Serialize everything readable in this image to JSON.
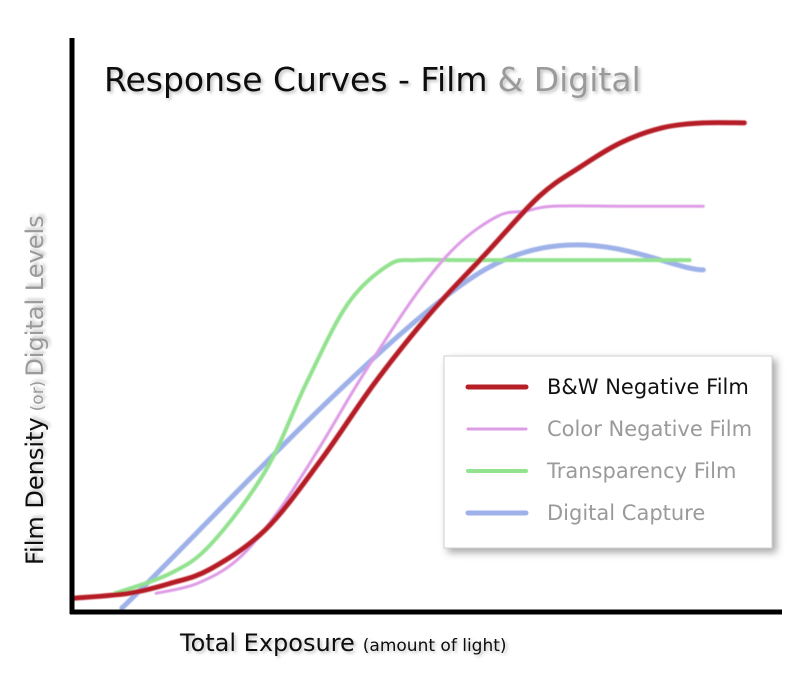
{
  "chart_data": {
    "type": "line",
    "title": {
      "main": "Response Curves - Film",
      "accent": "& Digital"
    },
    "xlabel": {
      "main": "Total Exposure",
      "sub": "(amount of light)"
    },
    "ylabel": {
      "main": "Film Density",
      "sub": "(or)",
      "accent": "Digital  Levels"
    },
    "xlim": [
      0,
      100
    ],
    "ylim": [
      0,
      100
    ],
    "grid": false,
    "legend_position": "right",
    "series": [
      {
        "name": "B&W Negative Film",
        "color": "#b51f25",
        "text_color": "#111111",
        "x": [
          0,
          8,
          14,
          20,
          28,
          36,
          44,
          52,
          60,
          68,
          74,
          80,
          86,
          92,
          98
        ],
        "y": [
          2,
          3,
          5,
          8,
          16,
          30,
          46,
          60,
          72,
          84,
          90,
          95,
          98,
          99,
          99
        ]
      },
      {
        "name": "Color Negative Film",
        "color": "#de9be6",
        "text_color": "#9a9a9a",
        "x": [
          12,
          18,
          24,
          30,
          36,
          42,
          50,
          56,
          62,
          66,
          70,
          80,
          90,
          92
        ],
        "y": [
          3,
          5,
          10,
          20,
          33,
          47,
          64,
          74,
          80,
          81,
          82,
          82,
          82,
          82
        ]
      },
      {
        "name": "Transparency Film",
        "color": "#92e28f",
        "text_color": "#9a9a9a",
        "x": [
          6,
          14,
          20,
          28,
          34,
          40,
          46,
          50,
          56,
          62,
          70,
          80,
          90
        ],
        "y": [
          3,
          7,
          13,
          28,
          46,
          62,
          70,
          71,
          71,
          71,
          71,
          71,
          71
        ]
      },
      {
        "name": "Digital Capture",
        "color": "#9eb1e8",
        "text_color": "#9a9a9a",
        "x": [
          7,
          60,
          92
        ],
        "y": [
          0,
          69,
          69
        ]
      }
    ]
  }
}
